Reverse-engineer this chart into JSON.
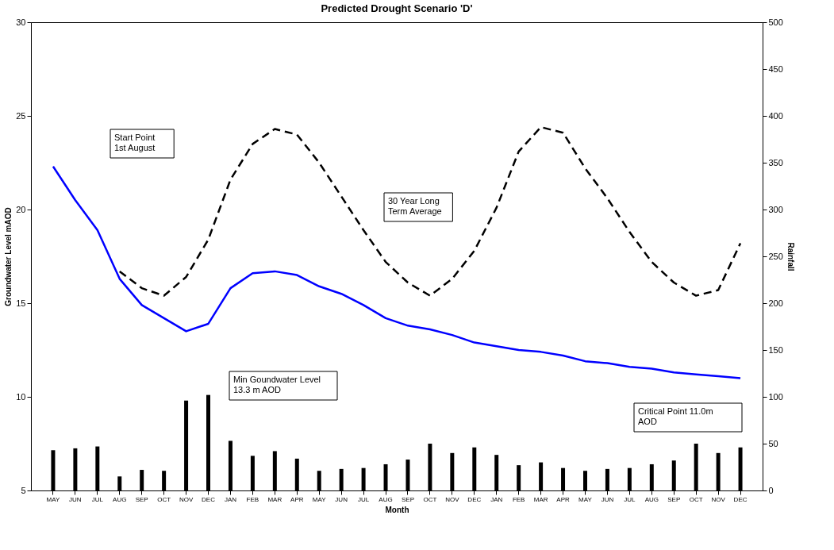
{
  "chart_data": {
    "type": "line",
    "title": "Predicted Drought Scenario 'D'",
    "xlabel": "Month",
    "ylabel": "Groundwater Level mAOD",
    "y2label": "Rainfall",
    "categories": [
      "MAY",
      "JUN",
      "JUL",
      "AUG",
      "SEP",
      "OCT",
      "NOV",
      "DEC",
      "JAN",
      "FEB",
      "MAR",
      "APR",
      "MAY",
      "JUN",
      "JUL",
      "AUG",
      "SEP",
      "OCT",
      "NOV",
      "DEC",
      "JAN",
      "FEB",
      "MAR",
      "APR",
      "MAY",
      "JUN",
      "JUL",
      "AUG",
      "SEP",
      "OCT",
      "NOV",
      "DEC"
    ],
    "series": [
      {
        "type": "bar",
        "axis": "y2",
        "color": "#000000",
        "values": [
          43,
          45,
          47,
          15,
          22,
          21,
          96,
          102,
          53,
          37,
          42,
          34,
          21,
          23,
          24,
          28,
          33,
          50,
          40,
          46,
          38,
          27,
          30,
          24,
          21,
          23,
          24,
          28,
          32,
          50,
          40,
          46
        ]
      },
      {
        "color": "#0000ff",
        "line_style": "solid",
        "values": [
          22.3,
          20.5,
          18.9,
          16.3,
          14.9,
          14.2,
          13.5,
          13.9,
          15.8,
          16.6,
          16.7,
          16.5,
          15.9,
          15.5,
          14.9,
          14.2,
          13.8,
          13.6,
          13.3,
          12.9,
          12.7,
          12.5,
          12.4,
          12.2,
          11.9,
          11.8,
          11.6,
          11.5,
          11.3,
          11.2,
          11.1,
          11.0
        ]
      },
      {
        "color": "#000000",
        "line_style": "dashed",
        "values": [
          null,
          null,
          null,
          16.7,
          15.8,
          15.4,
          16.4,
          18.4,
          21.6,
          23.5,
          24.3,
          24.0,
          22.5,
          20.7,
          18.9,
          17.2,
          16.1,
          15.4,
          16.3,
          17.8,
          20.1,
          23.1,
          24.4,
          24.1,
          22.2,
          20.6,
          18.8,
          17.2,
          16.1,
          15.4,
          15.7,
          18.2
        ]
      }
    ],
    "ylim": [
      5,
      30
    ],
    "yticks": [
      5,
      10,
      15,
      20,
      25,
      30
    ],
    "y2lim": [
      0,
      500
    ],
    "y2ticks": [
      0,
      50,
      100,
      150,
      200,
      250,
      300,
      350,
      400,
      450,
      500
    ],
    "grid": false,
    "legend": false,
    "marker": "none",
    "annotations": [
      "Start Point\n1st August",
      "30 Year Long\nTerm Average",
      "Min Goundwater Level\n13.3 m AOD",
      "Critical Point 11.0m\nAOD"
    ]
  }
}
